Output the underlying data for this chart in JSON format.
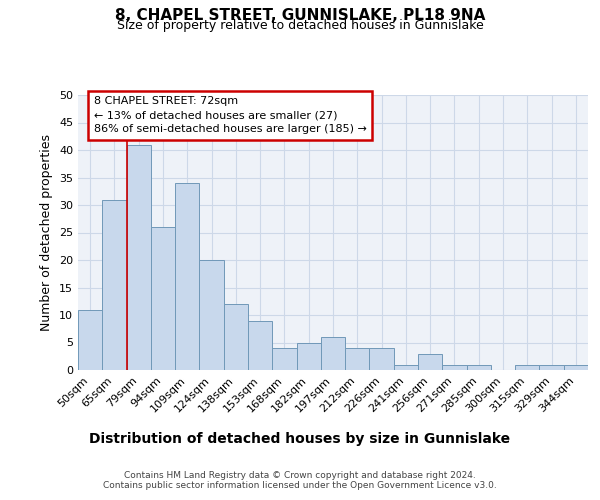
{
  "title": "8, CHAPEL STREET, GUNNISLAKE, PL18 9NA",
  "subtitle": "Size of property relative to detached houses in Gunnislake",
  "xlabel": "Distribution of detached houses by size in Gunnislake",
  "ylabel": "Number of detached properties",
  "categories": [
    "50sqm",
    "65sqm",
    "79sqm",
    "94sqm",
    "109sqm",
    "124sqm",
    "138sqm",
    "153sqm",
    "168sqm",
    "182sqm",
    "197sqm",
    "212sqm",
    "226sqm",
    "241sqm",
    "256sqm",
    "271sqm",
    "285sqm",
    "300sqm",
    "315sqm",
    "329sqm",
    "344sqm"
  ],
  "values": [
    11,
    31,
    41,
    26,
    34,
    20,
    12,
    9,
    4,
    5,
    6,
    4,
    4,
    1,
    3,
    1,
    1,
    0,
    1,
    1,
    1
  ],
  "bar_color": "#c8d8ec",
  "bar_edge_color": "#7098b8",
  "reference_line_color": "#cc0000",
  "reference_line_x": 1.5,
  "annotation_line1": "8 CHAPEL STREET: 72sqm",
  "annotation_line2": "← 13% of detached houses are smaller (27)",
  "annotation_line3": "86% of semi-detached houses are larger (185) →",
  "annotation_box_color": "#cc0000",
  "ylim": [
    0,
    50
  ],
  "yticks": [
    0,
    5,
    10,
    15,
    20,
    25,
    30,
    35,
    40,
    45,
    50
  ],
  "footnote1": "Contains HM Land Registry data © Crown copyright and database right 2024.",
  "footnote2": "Contains public sector information licensed under the Open Government Licence v3.0.",
  "grid_color": "#cdd8e8",
  "background_color": "#eef2f8",
  "fig_background": "#ffffff",
  "title_fontsize": 11,
  "subtitle_fontsize": 9,
  "ylabel_fontsize": 9,
  "xlabel_fontsize": 10,
  "tick_fontsize": 8,
  "footnote_fontsize": 6.5
}
